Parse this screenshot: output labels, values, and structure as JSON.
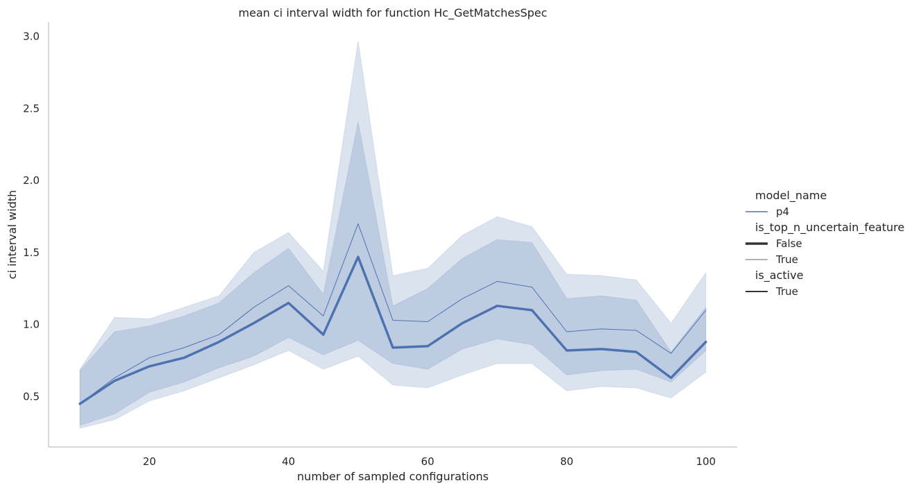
{
  "chart_data": {
    "type": "line",
    "title": "mean ci interval width for function Hc_GetMatchesSpec",
    "xlabel": "number of sampled configurations",
    "ylabel": "ci interval width",
    "xlim": [
      5.5,
      104.5
    ],
    "ylim": [
      0.15,
      3.1
    ],
    "xticks": [
      20,
      40,
      60,
      80,
      100
    ],
    "yticks": [
      0.5,
      1.0,
      1.5,
      2.0,
      2.5,
      3.0
    ],
    "ytick_labels": [
      "0.5",
      "1.0",
      "1.5",
      "2.0",
      "2.5",
      "3.0"
    ],
    "grid": false,
    "color": "#4c72b0",
    "x": [
      10,
      15,
      20,
      25,
      30,
      35,
      40,
      45,
      50,
      55,
      60,
      65,
      70,
      75,
      80,
      85,
      90,
      95,
      100
    ],
    "series": [
      {
        "style": "thick",
        "values": [
          0.45,
          0.61,
          0.71,
          0.77,
          0.88,
          1.01,
          1.15,
          0.93,
          1.47,
          0.84,
          0.85,
          1.01,
          1.13,
          1.1,
          0.82,
          0.83,
          0.81,
          0.63,
          0.88
        ],
        "ci_low": [
          0.3,
          0.38,
          0.53,
          0.6,
          0.7,
          0.78,
          0.91,
          0.79,
          0.89,
          0.73,
          0.69,
          0.83,
          0.9,
          0.86,
          0.65,
          0.68,
          0.69,
          0.6,
          0.82
        ],
        "ci_high": [
          0.68,
          0.95,
          0.99,
          1.06,
          1.15,
          1.36,
          1.53,
          1.21,
          2.41,
          1.13,
          1.25,
          1.46,
          1.59,
          1.57,
          1.18,
          1.2,
          1.17,
          0.81,
          1.12
        ]
      },
      {
        "style": "thin",
        "values": [
          0.45,
          0.63,
          0.77,
          0.84,
          0.93,
          1.12,
          1.27,
          1.06,
          1.7,
          1.03,
          1.02,
          1.18,
          1.3,
          1.26,
          0.95,
          0.97,
          0.96,
          0.8,
          1.1
        ],
        "ci_low": [
          0.28,
          0.34,
          0.47,
          0.54,
          0.63,
          0.72,
          0.82,
          0.69,
          0.78,
          0.58,
          0.56,
          0.65,
          0.73,
          0.73,
          0.54,
          0.57,
          0.56,
          0.49,
          0.67
        ],
        "ci_high": [
          0.69,
          1.05,
          1.04,
          1.12,
          1.2,
          1.5,
          1.64,
          1.37,
          2.97,
          1.34,
          1.39,
          1.62,
          1.75,
          1.68,
          1.35,
          1.34,
          1.31,
          1.01,
          1.36
        ]
      }
    ],
    "legend": {
      "placement": "right",
      "groups": [
        {
          "title": "model_name",
          "entries": [
            {
              "label": "p4",
              "style": "normal"
            }
          ]
        },
        {
          "title": "is_top_n_uncertain_feature",
          "entries": [
            {
              "label": "False",
              "style": "thick"
            },
            {
              "label": "True",
              "style": "thin"
            }
          ]
        },
        {
          "title": "is_active",
          "entries": [
            {
              "label": "True",
              "style": "solid"
            }
          ]
        }
      ]
    }
  }
}
